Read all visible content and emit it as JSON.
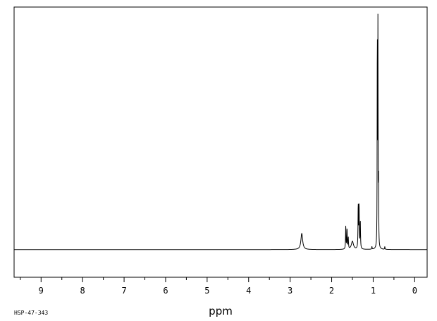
{
  "chart_data": {
    "type": "line",
    "title": "",
    "xlabel": "ppm",
    "ylabel": "",
    "x_reversed": true,
    "xlim": [
      9.65,
      -0.3
    ],
    "ylim": [
      -0.12,
      1.05
    ],
    "grid": false,
    "tick_labels": [
      "9",
      "8",
      "7",
      "6",
      "5",
      "4",
      "3",
      "2",
      "1",
      "0"
    ],
    "tick_values": [
      9,
      8,
      7,
      6,
      5,
      4,
      3,
      2,
      1,
      0
    ],
    "peaks": [
      {
        "ppm": 2.72,
        "height": 0.07,
        "width": 0.025
      },
      {
        "ppm": 1.66,
        "height": 0.1,
        "width": 0.006
      },
      {
        "ppm": 1.63,
        "height": 0.09,
        "width": 0.006
      },
      {
        "ppm": 1.6,
        "height": 0.05,
        "width": 0.006
      },
      {
        "ppm": 1.5,
        "height": 0.035,
        "width": 0.03
      },
      {
        "ppm": 1.36,
        "height": 0.19,
        "width": 0.006
      },
      {
        "ppm": 1.34,
        "height": 0.19,
        "width": 0.006
      },
      {
        "ppm": 1.31,
        "height": 0.12,
        "width": 0.006
      },
      {
        "ppm": 1.03,
        "height": 0.012,
        "width": 0.005
      },
      {
        "ppm": 0.9,
        "height": 1.0,
        "width": 0.004
      },
      {
        "ppm": 0.885,
        "height": 0.96,
        "width": 0.004
      },
      {
        "ppm": 0.87,
        "height": 0.28,
        "width": 0.004
      },
      {
        "ppm": 0.72,
        "height": 0.012,
        "width": 0.005
      }
    ]
  },
  "footer_id": "HSP-47-343"
}
